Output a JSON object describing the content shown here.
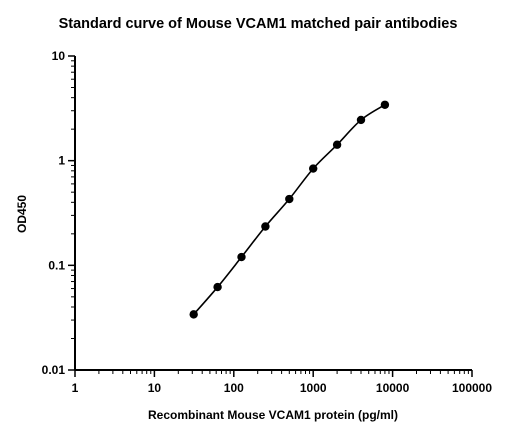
{
  "chart_data": {
    "type": "scatter",
    "title": "Standard curve of Mouse VCAM1 matched pair antibodies",
    "xlabel": "Recombinant Mouse VCAM1 protein (pg/ml)",
    "ylabel": "OD450",
    "x_scale": "log",
    "y_scale": "log",
    "xlim": [
      1,
      100000
    ],
    "ylim": [
      0.01,
      10
    ],
    "x_ticks": [
      "1",
      "10",
      "100",
      "1000",
      "10000",
      "100000"
    ],
    "y_ticks": [
      "0.01",
      "0.1",
      "1",
      "10"
    ],
    "grid": false,
    "legend": "none",
    "series": [
      {
        "x": [
          31.25,
          62.5,
          125,
          250,
          500,
          1000,
          2000,
          4000,
          8000
        ],
        "y": [
          0.034,
          0.062,
          0.12,
          0.235,
          0.43,
          0.84,
          1.42,
          2.45,
          3.42
        ],
        "color": "#000000",
        "fit_curve": true
      }
    ]
  }
}
